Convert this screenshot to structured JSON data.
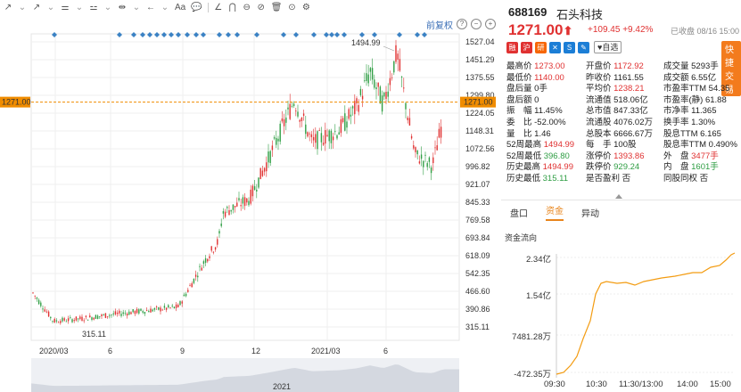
{
  "toolbar": {
    "items": [
      "↗",
      "⌄",
      "↗",
      "⌄",
      "⚌",
      "⌄",
      "⚍",
      "⌄",
      "⇹",
      "⌄",
      "←",
      "⌄",
      "Aa",
      "💬",
      "∠",
      "⋂",
      "⊖",
      "⊘",
      "🗑",
      "⊙",
      "⚙"
    ]
  },
  "chart_controls": {
    "restore_label": "前复权",
    "help": "?",
    "minus": "−",
    "plus": "+"
  },
  "chart_data": {
    "type": "candlestick",
    "y_ticks": [
      "1527.04",
      "1451.29",
      "1375.55",
      "1299.80",
      "1224.05",
      "1148.31",
      "1072.56",
      "996.82",
      "921.07",
      "845.33",
      "769.58",
      "693.84",
      "618.09",
      "542.35",
      "466.60",
      "390.86",
      "315.11"
    ],
    "current_price_tag": "1271.00",
    "x_ticks": [
      "2020/03",
      "6",
      "9",
      "12",
      "2021/03",
      "6"
    ],
    "max_label": "1494.99",
    "min_label": "315.11",
    "nav_year": "2021",
    "price_range": [
      315.11,
      1527.04
    ]
  },
  "quote": {
    "code": "688169",
    "name": "石头科技",
    "price": "1271.00",
    "arrow": "⬆",
    "change": "+109.45",
    "change_pct": "+9.42%",
    "status": "已收盘 08/16 15:00",
    "fav_label": "♥自选",
    "trade_label": "快捷交易",
    "icons": [
      "融",
      "沪",
      "研",
      "✕",
      "S",
      "✎"
    ]
  },
  "stats": {
    "col1": [
      {
        "k": "最高价",
        "v": "1273.00",
        "c": "red"
      },
      {
        "k": "最低价",
        "v": "1140.00",
        "c": "red"
      },
      {
        "k": "盘后量",
        "v": "0手",
        "c": ""
      },
      {
        "k": "盘后额",
        "v": "0",
        "c": ""
      },
      {
        "k": "振　幅",
        "v": "11.45%",
        "c": ""
      },
      {
        "k": "委　比",
        "v": "-52.00%",
        "c": ""
      },
      {
        "k": "量　比",
        "v": "1.46",
        "c": ""
      },
      {
        "k": "52周最高",
        "v": "1494.99",
        "c": "red"
      },
      {
        "k": "52周最低",
        "v": "396.80",
        "c": "green"
      },
      {
        "k": "历史最高",
        "v": "1494.99",
        "c": "red"
      },
      {
        "k": "历史最低",
        "v": "315.11",
        "c": "green"
      }
    ],
    "col2": [
      {
        "k": "开盘价",
        "v": "1172.92",
        "c": "red"
      },
      {
        "k": "昨收价",
        "v": "1161.55",
        "c": ""
      },
      {
        "k": "平均价",
        "v": "1238.21",
        "c": "red"
      },
      {
        "k": "流通值",
        "v": "518.06亿",
        "c": ""
      },
      {
        "k": "总市值",
        "v": "847.33亿",
        "c": ""
      },
      {
        "k": "流通股",
        "v": "4076.02万",
        "c": ""
      },
      {
        "k": "总股本",
        "v": "6666.67万",
        "c": ""
      },
      {
        "k": "每　手",
        "v": "100股",
        "c": ""
      },
      {
        "k": "涨停价",
        "v": "1393.86",
        "c": "red"
      },
      {
        "k": "跌停价",
        "v": "929.24",
        "c": "green"
      },
      {
        "k": "是否盈利",
        "v": "否",
        "c": ""
      }
    ],
    "col3": [
      {
        "k": "成交量",
        "v": "5293手",
        "c": ""
      },
      {
        "k": "成交额",
        "v": "6.55亿",
        "c": ""
      },
      {
        "k": "市盈率TTM",
        "v": "54.35",
        "c": ""
      },
      {
        "k": "市盈率(静)",
        "v": "61.88",
        "c": ""
      },
      {
        "k": "市净率",
        "v": "11.365",
        "c": ""
      },
      {
        "k": "换手率",
        "v": "1.30%",
        "c": ""
      },
      {
        "k": "股息TTM",
        "v": "6.165",
        "c": ""
      },
      {
        "k": "股息率TTM",
        "v": "0.490%",
        "c": ""
      },
      {
        "k": "外　盘",
        "v": "3477手",
        "c": "red"
      },
      {
        "k": "内　盘",
        "v": "1601手",
        "c": "green"
      },
      {
        "k": "同股同权",
        "v": "否",
        "c": ""
      }
    ]
  },
  "tabs": [
    "盘口",
    "资金",
    "异动"
  ],
  "active_tab": "资金",
  "flow": {
    "title": "资金流向",
    "y_labels": [
      "2.34亿",
      "1.54亿",
      "7481.28万",
      "-472.35万"
    ],
    "x_labels": [
      "09:30",
      "10:30",
      "11:30/13:00",
      "14:00",
      "15:00"
    ],
    "color": "#f39c12"
  }
}
